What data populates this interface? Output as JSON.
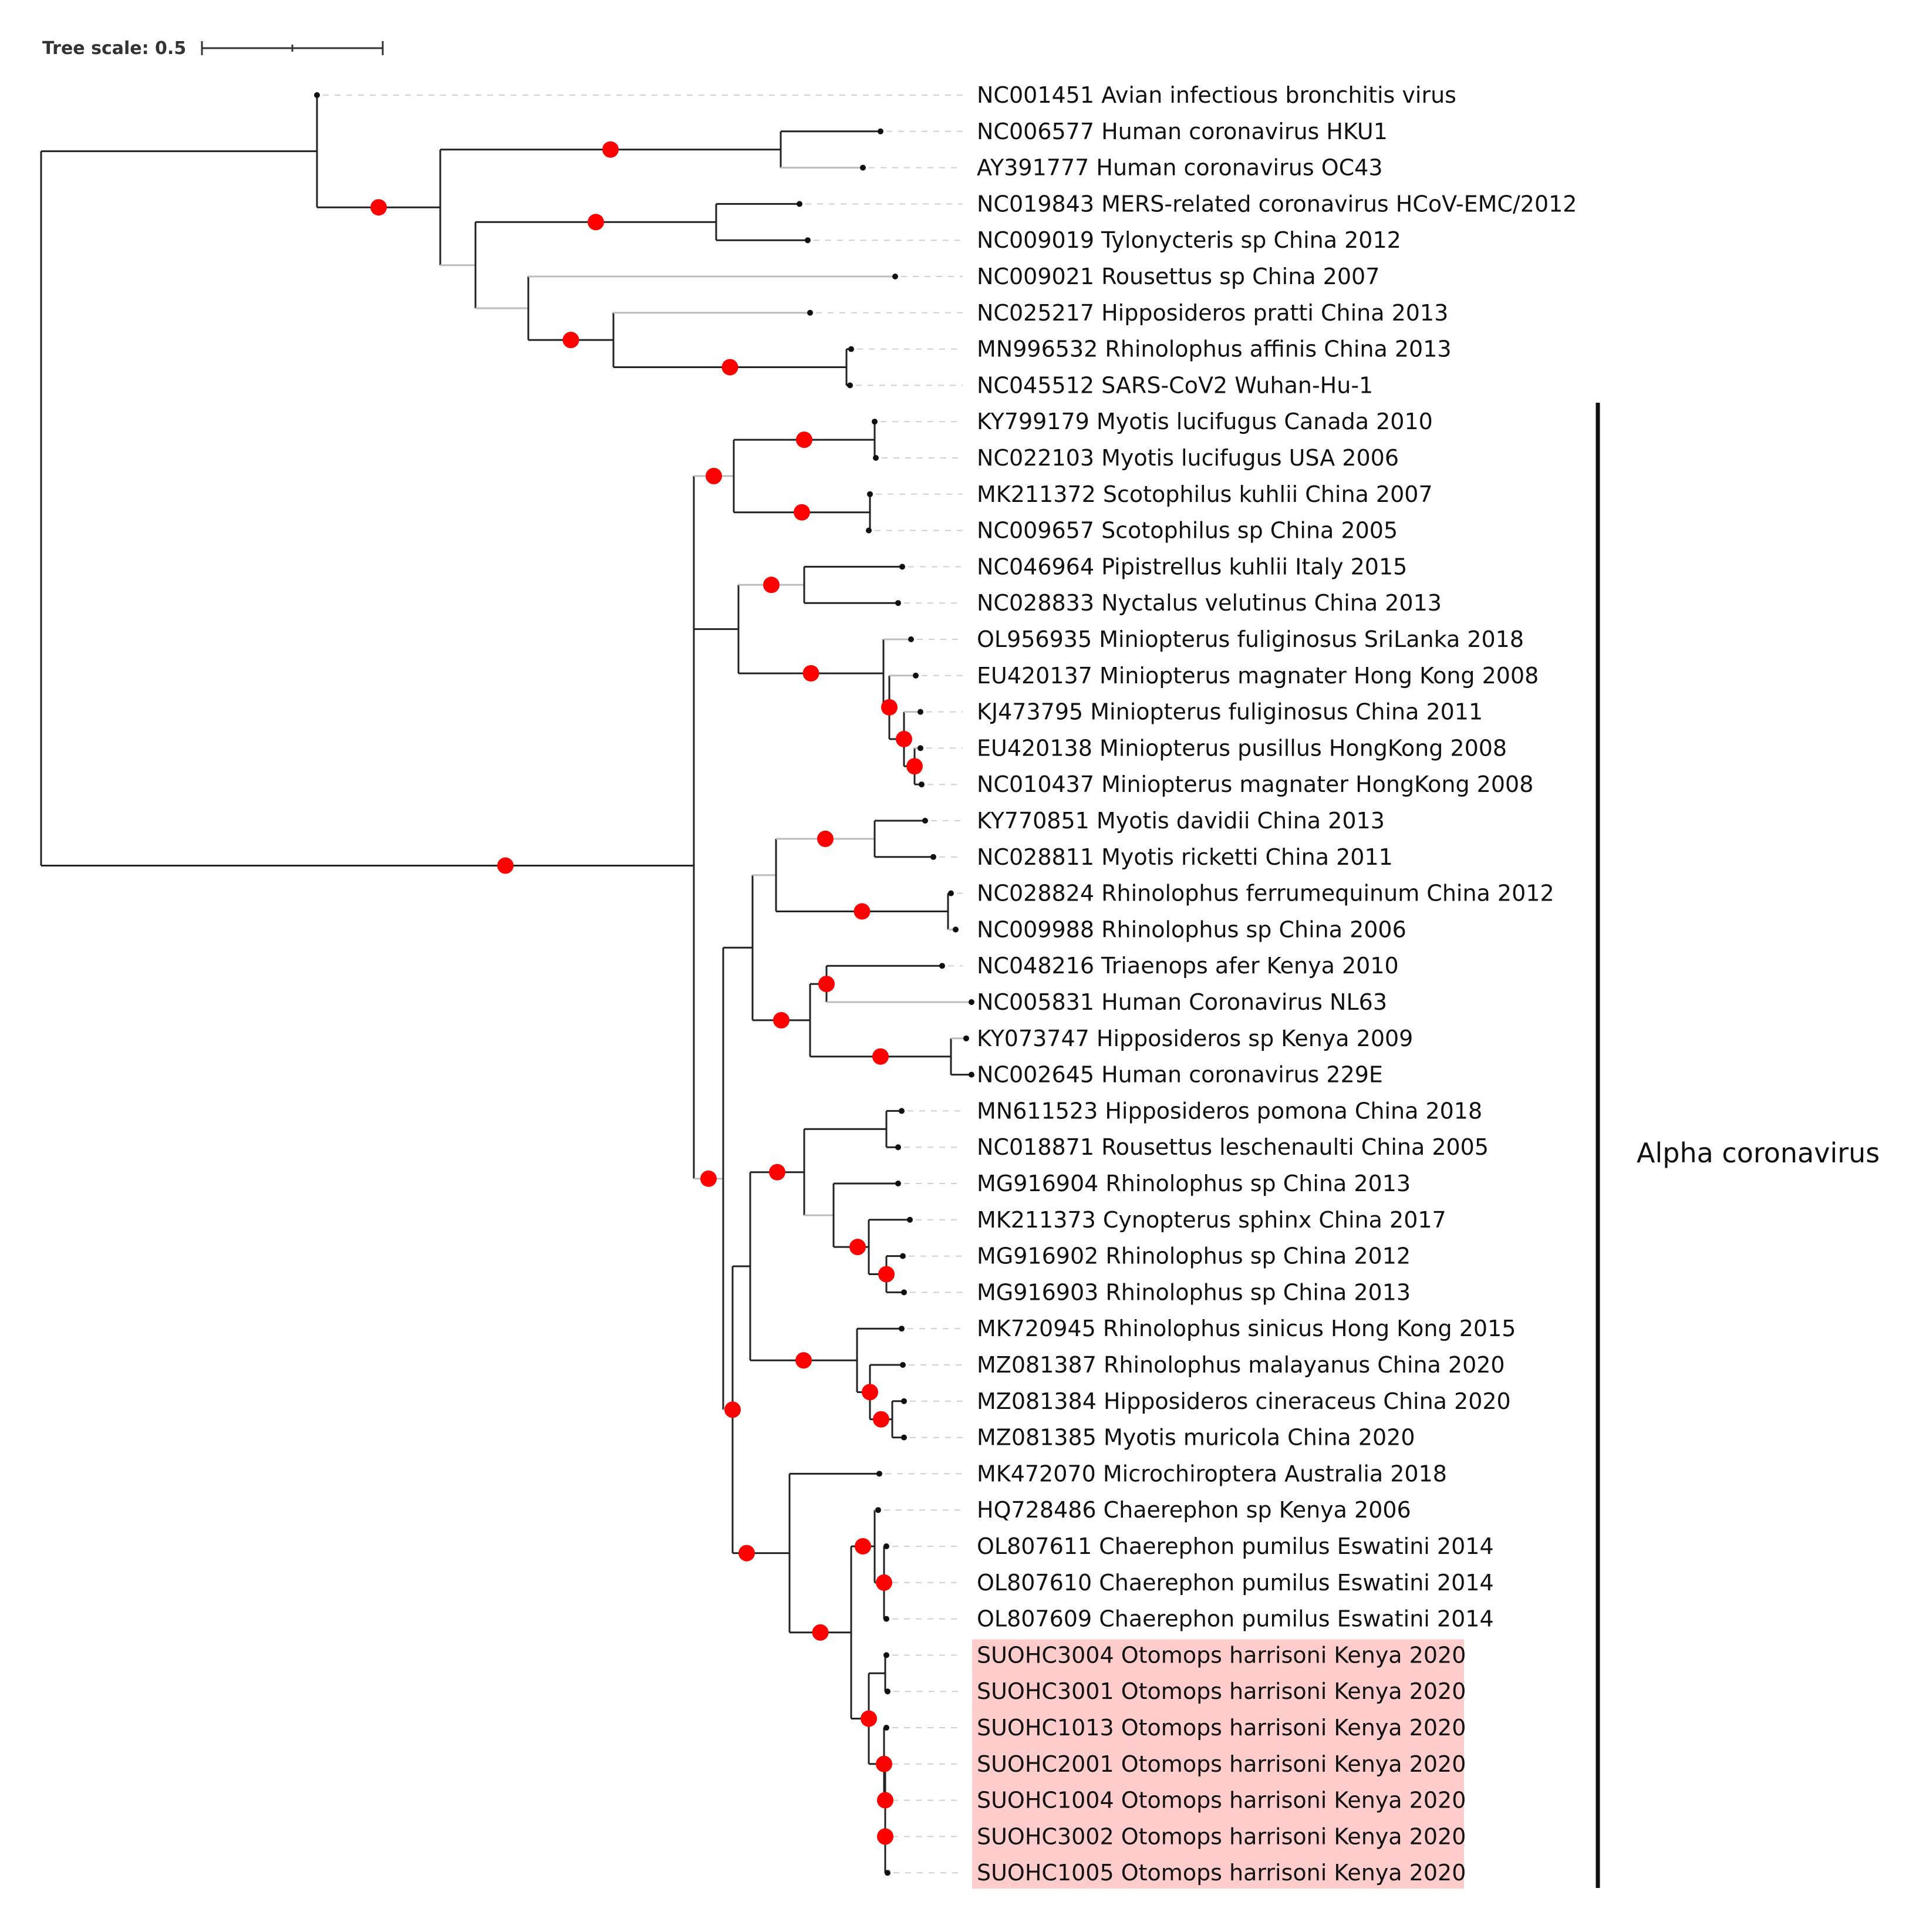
{
  "tree_scale": {
    "label": "Tree scale: 0.5",
    "value": 0.5
  },
  "clade": {
    "label": "Alpha coronavirus"
  },
  "leaves": [
    {
      "label": "NC001451 Avian infectious bronchitis virus",
      "highlight": false
    },
    {
      "label": "NC006577 Human coronavirus HKU1",
      "highlight": false
    },
    {
      "label": "AY391777 Human coronavirus OC43",
      "highlight": false
    },
    {
      "label": "NC019843 MERS-related coronavirus HCoV-EMC/2012",
      "highlight": false
    },
    {
      "label": "NC009019 Tylonycteris sp China 2012",
      "highlight": false
    },
    {
      "label": "NC009021 Rousettus sp China 2007",
      "highlight": false
    },
    {
      "label": "NC025217 Hipposideros pratti China 2013",
      "highlight": false
    },
    {
      "label": "MN996532 Rhinolophus affinis China 2013",
      "highlight": false
    },
    {
      "label": "NC045512 SARS-CoV2 Wuhan-Hu-1",
      "highlight": false
    },
    {
      "label": "KY799179 Myotis lucifugus Canada 2010",
      "highlight": false
    },
    {
      "label": "NC022103 Myotis lucifugus USA 2006",
      "highlight": false
    },
    {
      "label": "MK211372 Scotophilus kuhlii China 2007",
      "highlight": false
    },
    {
      "label": "NC009657 Scotophilus sp China 2005",
      "highlight": false
    },
    {
      "label": "NC046964 Pipistrellus kuhlii Italy 2015",
      "highlight": false
    },
    {
      "label": "NC028833 Nyctalus velutinus China 2013",
      "highlight": false
    },
    {
      "label": "OL956935 Miniopterus fuliginosus SriLanka 2018",
      "highlight": false
    },
    {
      "label": "EU420137 Miniopterus magnater Hong Kong 2008",
      "highlight": false
    },
    {
      "label": "KJ473795 Miniopterus fuliginosus China 2011",
      "highlight": false
    },
    {
      "label": "EU420138 Miniopterus pusillus HongKong 2008",
      "highlight": false
    },
    {
      "label": "NC010437 Miniopterus magnater HongKong 2008",
      "highlight": false
    },
    {
      "label": "KY770851 Myotis davidii China 2013",
      "highlight": false
    },
    {
      "label": "NC028811 Myotis ricketti China 2011",
      "highlight": false
    },
    {
      "label": "NC028824 Rhinolophus ferrumequinum China 2012",
      "highlight": false
    },
    {
      "label": "NC009988 Rhinolophus sp China 2006",
      "highlight": false
    },
    {
      "label": "NC048216 Triaenops afer Kenya 2010",
      "highlight": false
    },
    {
      "label": "NC005831 Human Coronavirus NL63",
      "highlight": false
    },
    {
      "label": "KY073747 Hipposideros sp Kenya 2009",
      "highlight": false
    },
    {
      "label": "NC002645 Human coronavirus 229E",
      "highlight": false
    },
    {
      "label": "MN611523 Hipposideros pomona China 2018",
      "highlight": false
    },
    {
      "label": "NC018871 Rousettus leschenaulti China 2005",
      "highlight": false
    },
    {
      "label": "MG916904 Rhinolophus sp China 2013",
      "highlight": false
    },
    {
      "label": "MK211373 Cynopterus sphinx China 2017",
      "highlight": false
    },
    {
      "label": "MG916902 Rhinolophus sp China 2012",
      "highlight": false
    },
    {
      "label": "MG916903 Rhinolophus sp China 2013",
      "highlight": false
    },
    {
      "label": "MK720945 Rhinolophus sinicus Hong Kong 2015",
      "highlight": false
    },
    {
      "label": "MZ081387 Rhinolophus malayanus China 2020",
      "highlight": false
    },
    {
      "label": "MZ081384 Hipposideros cineraceus China 2020",
      "highlight": false
    },
    {
      "label": "MZ081385 Myotis muricola China 2020",
      "highlight": false
    },
    {
      "label": "MK472070 Microchiroptera Australia 2018",
      "highlight": false
    },
    {
      "label": "HQ728486 Chaerephon sp Kenya 2006",
      "highlight": false
    },
    {
      "label": "OL807611 Chaerephon pumilus Eswatini 2014",
      "highlight": false
    },
    {
      "label": "OL807610 Chaerephon pumilus Eswatini 2014",
      "highlight": false
    },
    {
      "label": "OL807609 Chaerephon pumilus Eswatini 2014",
      "highlight": false
    },
    {
      "label": "SUOHC3004 Otomops harrisoni Kenya 2020",
      "highlight": true
    },
    {
      "label": "SUOHC3001 Otomops harrisoni Kenya 2020",
      "highlight": true
    },
    {
      "label": "SUOHC1013 Otomops harrisoni Kenya 2020",
      "highlight": true
    },
    {
      "label": "SUOHC2001 Otomops harrisoni Kenya 2020",
      "highlight": true
    },
    {
      "label": "SUOHC1004 Otomops harrisoni Kenya 2020",
      "highlight": true
    },
    {
      "label": "SUOHC3002 Otomops harrisoni Kenya 2020",
      "highlight": true
    },
    {
      "label": "SUOHC1005 Otomops harrisoni Kenya 2020",
      "highlight": true
    }
  ],
  "colors": {
    "support_marker": "#ff0000",
    "highlight_fill": "#ffcccc",
    "branch_dark": "#222222",
    "branch_light": "#bdbdbd"
  }
}
